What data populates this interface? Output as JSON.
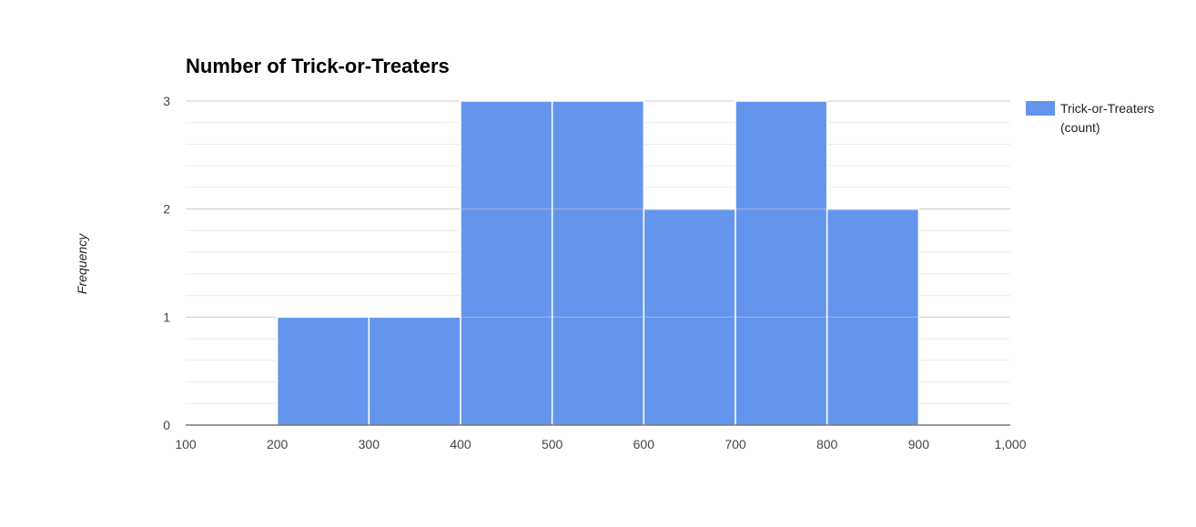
{
  "chart_data": {
    "type": "bar",
    "title": "Number of Trick-or-Treaters",
    "xlabel": "",
    "ylabel": "Frequency",
    "xlim": [
      100,
      1000
    ],
    "ylim": [
      0,
      3
    ],
    "x_ticks": [
      "100",
      "200",
      "300",
      "400",
      "500",
      "600",
      "700",
      "800",
      "900",
      "1,000"
    ],
    "y_ticks": [
      "0",
      "1",
      "2",
      "3"
    ],
    "bins": [
      {
        "x0": 200,
        "x1": 300,
        "value": 1
      },
      {
        "x0": 300,
        "x1": 400,
        "value": 1
      },
      {
        "x0": 400,
        "x1": 500,
        "value": 3
      },
      {
        "x0": 500,
        "x1": 600,
        "value": 3
      },
      {
        "x0": 600,
        "x1": 700,
        "value": 2
      },
      {
        "x0": 700,
        "x1": 800,
        "value": 3
      },
      {
        "x0": 800,
        "x1": 900,
        "value": 2
      }
    ],
    "series": [
      {
        "name": "Trick-or-Treaters (count)",
        "name_lines": [
          "Trick-or-Treaters",
          "(count)"
        ],
        "color": "#6495ED"
      }
    ],
    "legend_position": "right",
    "grid": true
  }
}
